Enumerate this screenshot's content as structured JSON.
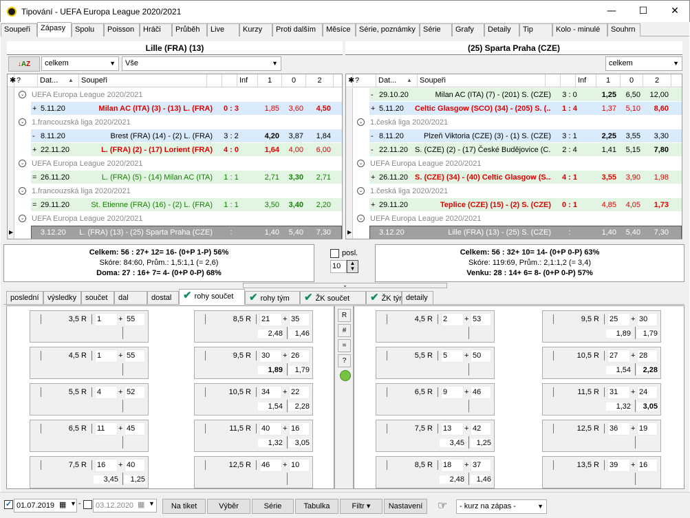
{
  "window": {
    "title": "Tipování - UEFA Europa League 2020/2021",
    "minimize": "—",
    "maximize": "☐",
    "close": "✕"
  },
  "tabs": [
    "Soupeři",
    "Zápasy",
    "Spolu",
    "Poisson",
    "Hráči",
    "Průběh",
    "Live",
    "Kurzy",
    "Proti dalším",
    "Měsíce",
    "Série, poznámky",
    "Série",
    "Grafy",
    "Detaily",
    "Tip",
    "Kolo - minulé",
    "Souhrn"
  ],
  "left": {
    "header": "Lille (FRA) (13)",
    "combo1": "celkem",
    "combo2": "Vše",
    "columns": {
      "star": "✱",
      "q": "?",
      "date": "Dat...",
      "sort": "▲",
      "opp": "Soupeři",
      "inf": "Inf",
      "c1": "1",
      "c0": "0",
      "c2": "2"
    },
    "rows": [
      {
        "t": "g",
        "text": "UEFA Europa League 2020/2021"
      },
      {
        "t": "m",
        "bg": "#d9ebfa",
        "sign": "+",
        "date": "5.11.20",
        "opp": "Milan AC (ITA) (3) - (13) L. (FRA)",
        "score": "0 : 3",
        "o1": "1,85",
        "o0": "3,60",
        "o2": "4,50",
        "st": "red",
        "b1": "",
        "b0": "",
        "b2": "bold"
      },
      {
        "t": "g",
        "text": "1.francouzská liga 2020/2021"
      },
      {
        "t": "m",
        "bg": "#d9ebfa",
        "sign": "-",
        "date": "8.11.20",
        "opp": "Brest (FRA) (14) - (2) L. (FRA)",
        "score": "3 : 2",
        "o1": "4,20",
        "o0": "3,87",
        "o2": "1,84",
        "st": "",
        "b1": "bold",
        "b0": "",
        "b2": ""
      },
      {
        "t": "m",
        "bg": "#e2f5e2",
        "sign": "+",
        "date": "22.11.20",
        "opp": "L. (FRA) (2) - (17) Lorient (FRA)",
        "score": "4 : 0",
        "o1": "1,64",
        "o0": "4,00",
        "o2": "6,00",
        "st": "red",
        "b1": "bold",
        "b0": "",
        "b2": ""
      },
      {
        "t": "g",
        "text": "UEFA Europa League 2020/2021"
      },
      {
        "t": "m",
        "bg": "#e2f5e2",
        "sign": "=",
        "date": "26.11.20",
        "opp": "L. (FRA) (5) - (14) Milan AC (ITA)",
        "score": "1 : 1",
        "o1": "2,71",
        "o0": "3,30",
        "o2": "2,71",
        "st": "green",
        "b1": "",
        "b0": "bold",
        "b2": ""
      },
      {
        "t": "g",
        "text": "1.francouzská liga 2020/2021"
      },
      {
        "t": "m",
        "bg": "#e2f5e2",
        "sign": "=",
        "date": "29.11.20",
        "opp": "St. Etienne (FRA) (16) - (2) L. (FRA)",
        "score": "1 : 1",
        "o1": "3,50",
        "o0": "3,40",
        "o2": "2,20",
        "st": "green",
        "b1": "",
        "b0": "bold",
        "b2": ""
      },
      {
        "t": "g",
        "text": "UEFA Europa League 2020/2021"
      },
      {
        "t": "x",
        "date": "3.12.20",
        "opp": "L. (FRA) (13) - (25) Sparta Praha (CZE)",
        "score": ":",
        "o1": "1,40",
        "o0": "5,40",
        "o2": "7,30"
      }
    ]
  },
  "right": {
    "header": "(25) Sparta Praha (CZE)",
    "combo1": "celkem",
    "columns": {
      "star": "✱",
      "q": "?",
      "date": "Dat...",
      "sort": "▲",
      "opp": "Soupeři",
      "inf": "Inf",
      "c1": "1",
      "c0": "0",
      "c2": "2"
    },
    "rows": [
      {
        "t": "m",
        "bg": "#e2f5e2",
        "sign": "-",
        "date": "29.10.20",
        "opp": "Milan AC (ITA) (7) - (201) S. (CZE)",
        "score": "3 : 0",
        "o1": "1,25",
        "o0": "6,50",
        "o2": "12,00",
        "st": "",
        "b1": "bold",
        "b0": "",
        "b2": ""
      },
      {
        "t": "m",
        "bg": "#d9ebfa",
        "sign": "+",
        "date": "5.11.20",
        "opp": "Celtic Glasgow (SCO) (34) - (205) S. (...",
        "score": "1 : 4",
        "o1": "1,37",
        "o0": "5,10",
        "o2": "8,60",
        "st": "red",
        "b1": "",
        "b0": "",
        "b2": "bold"
      },
      {
        "t": "g",
        "text": "1.česká liga 2020/2021"
      },
      {
        "t": "m",
        "bg": "#d9ebfa",
        "sign": "-",
        "date": "8.11.20",
        "opp": "Plzeň Viktoria (CZE) (3) - (1) S. (CZE)",
        "score": "3 : 1",
        "o1": "2,25",
        "o0": "3,55",
        "o2": "3,30",
        "st": "",
        "b1": "bold",
        "b0": "",
        "b2": ""
      },
      {
        "t": "m",
        "bg": "#e2f5e2",
        "sign": "-",
        "date": "22.11.20",
        "opp": "S. (CZE) (2) - (17) České Budějovice (C...",
        "score": "2 : 4",
        "o1": "1,41",
        "o0": "5,15",
        "o2": "7,80",
        "st": "",
        "b1": "",
        "b0": "",
        "b2": "bold"
      },
      {
        "t": "g",
        "text": "UEFA Europa League 2020/2021"
      },
      {
        "t": "m",
        "bg": "#e2f5e2",
        "sign": "+",
        "date": "26.11.20",
        "opp": "S. (CZE) (34) - (40) Celtic Glasgow (S...",
        "score": "4 : 1",
        "o1": "3,55",
        "o0": "3,90",
        "o2": "1,98",
        "st": "red",
        "b1": "bold",
        "b0": "",
        "b2": ""
      },
      {
        "t": "g",
        "text": "1.česká liga 2020/2021"
      },
      {
        "t": "m",
        "bg": "#e2f5e2",
        "sign": "+",
        "date": "29.11.20",
        "opp": "Teplice (CZE) (15) - (2) S. (CZE)",
        "score": "0 : 1",
        "o1": "4,85",
        "o0": "4,05",
        "o2": "1,73",
        "st": "red",
        "b1": "",
        "b0": "",
        "b2": "bold"
      },
      {
        "t": "g",
        "text": "UEFA Europa League 2020/2021"
      },
      {
        "t": "x",
        "date": "3.12.20",
        "opp": "Lille (FRA) (13) - (25) S. (CZE)",
        "score": ":",
        "o1": "1,40",
        "o0": "5,40",
        "o2": "7,30"
      }
    ]
  },
  "stats_left": {
    "l1": "Celkem: 56 : 27+  12=  16- (0+P  1-P)  56%",
    "l2": "Skóre: 84:60, Prům.: 1,5:1,1 (= 2,6)",
    "l3": "Doma: 27 : 16+  7=  4- (0+P  0-P)  68%"
  },
  "stats_right": {
    "l1": "Celkem: 56 : 32+  10=  14- (0+P  0-P)  63%",
    "l2": "Skóre: 119:69, Prům.: 2,1:1,2 (= 3,4)",
    "l3": "Venku: 28 : 14+  6=  8- (0+P  0-P)  57%"
  },
  "posl": {
    "label": "posl.",
    "value": "10"
  },
  "subtabs": [
    {
      "label": "poslední",
      "check": false
    },
    {
      "label": "výsledky",
      "check": false
    },
    {
      "label": "součet",
      "check": false
    },
    {
      "label": "dal",
      "check": false
    },
    {
      "label": "dostal",
      "check": false
    },
    {
      "label": "rohy součet",
      "check": true
    },
    {
      "label": "rohy tým",
      "check": true
    },
    {
      "label": "ŽK součet",
      "check": true
    },
    {
      "label": "ŽK tým",
      "check": true
    },
    {
      "label": "detaily",
      "check": false
    }
  ],
  "cards_left": [
    {
      "lab": "3,5 R",
      "a": "1",
      "b": "55",
      "o1": "",
      "o2": "",
      "b1": false,
      "b2": false
    },
    {
      "lab": "4,5 R",
      "a": "1",
      "b": "55",
      "o1": "",
      "o2": "",
      "b1": false,
      "b2": false
    },
    {
      "lab": "5,5 R",
      "a": "4",
      "b": "52",
      "o1": "",
      "o2": "",
      "b1": false,
      "b2": false
    },
    {
      "lab": "6,5 R",
      "a": "11",
      "b": "45",
      "o1": "",
      "o2": "",
      "b1": false,
      "b2": false
    },
    {
      "lab": "7,5 R",
      "a": "16",
      "b": "40",
      "o1": "3,45",
      "o2": "1,25",
      "b1": false,
      "b2": false
    },
    {
      "lab": "8,5 R",
      "a": "21",
      "b": "35",
      "o1": "2,48",
      "o2": "1,46",
      "b1": false,
      "b2": false
    },
    {
      "lab": "9,5 R",
      "a": "30",
      "b": "26",
      "o1": "1,89",
      "o2": "1,79",
      "b1": true,
      "b2": false
    },
    {
      "lab": "10,5 R",
      "a": "34",
      "b": "22",
      "o1": "1,54",
      "o2": "2,28",
      "b1": false,
      "b2": false
    },
    {
      "lab": "11,5 R",
      "a": "40",
      "b": "16",
      "o1": "1,32",
      "o2": "3,05",
      "b1": false,
      "b2": false
    },
    {
      "lab": "12,5 R",
      "a": "46",
      "b": "10",
      "o1": "",
      "o2": "",
      "b1": false,
      "b2": false
    }
  ],
  "cards_right": [
    {
      "lab": "4,5 R",
      "a": "2",
      "b": "53",
      "o1": "",
      "o2": "",
      "b1": false,
      "b2": false
    },
    {
      "lab": "5,5 R",
      "a": "5",
      "b": "50",
      "o1": "",
      "o2": "",
      "b1": false,
      "b2": false
    },
    {
      "lab": "6,5 R",
      "a": "9",
      "b": "46",
      "o1": "",
      "o2": "",
      "b1": false,
      "b2": false
    },
    {
      "lab": "7,5 R",
      "a": "13",
      "b": "42",
      "o1": "3,45",
      "o2": "1,25",
      "b1": false,
      "b2": false
    },
    {
      "lab": "8,5 R",
      "a": "18",
      "b": "37",
      "o1": "2,48",
      "o2": "1,46",
      "b1": false,
      "b2": false
    },
    {
      "lab": "9,5 R",
      "a": "25",
      "b": "30",
      "o1": "1,89",
      "o2": "1,79",
      "b1": false,
      "b2": false
    },
    {
      "lab": "10,5 R",
      "a": "27",
      "b": "28",
      "o1": "1,54",
      "o2": "2,28",
      "b1": false,
      "b2": true
    },
    {
      "lab": "11,5 R",
      "a": "31",
      "b": "24",
      "o1": "1,32",
      "o2": "3,05",
      "b1": false,
      "b2": true
    },
    {
      "lab": "12,5 R",
      "a": "36",
      "b": "19",
      "o1": "",
      "o2": "",
      "b1": false,
      "b2": false
    },
    {
      "lab": "13,5 R",
      "a": "39",
      "b": "16",
      "o1": "",
      "o2": "",
      "b1": false,
      "b2": false
    }
  ],
  "side_buttons": [
    "R",
    "#",
    "=",
    "?"
  ],
  "bottom": {
    "date1": "01.07.2019",
    "date2": "03.12.2020",
    "buttons": [
      "Na tiket",
      "Výběr",
      "Série",
      "Tabulka",
      "Filtr ▾",
      "Nastavení"
    ],
    "kurz": "- kurz na zápas -",
    "hand": "☞"
  }
}
